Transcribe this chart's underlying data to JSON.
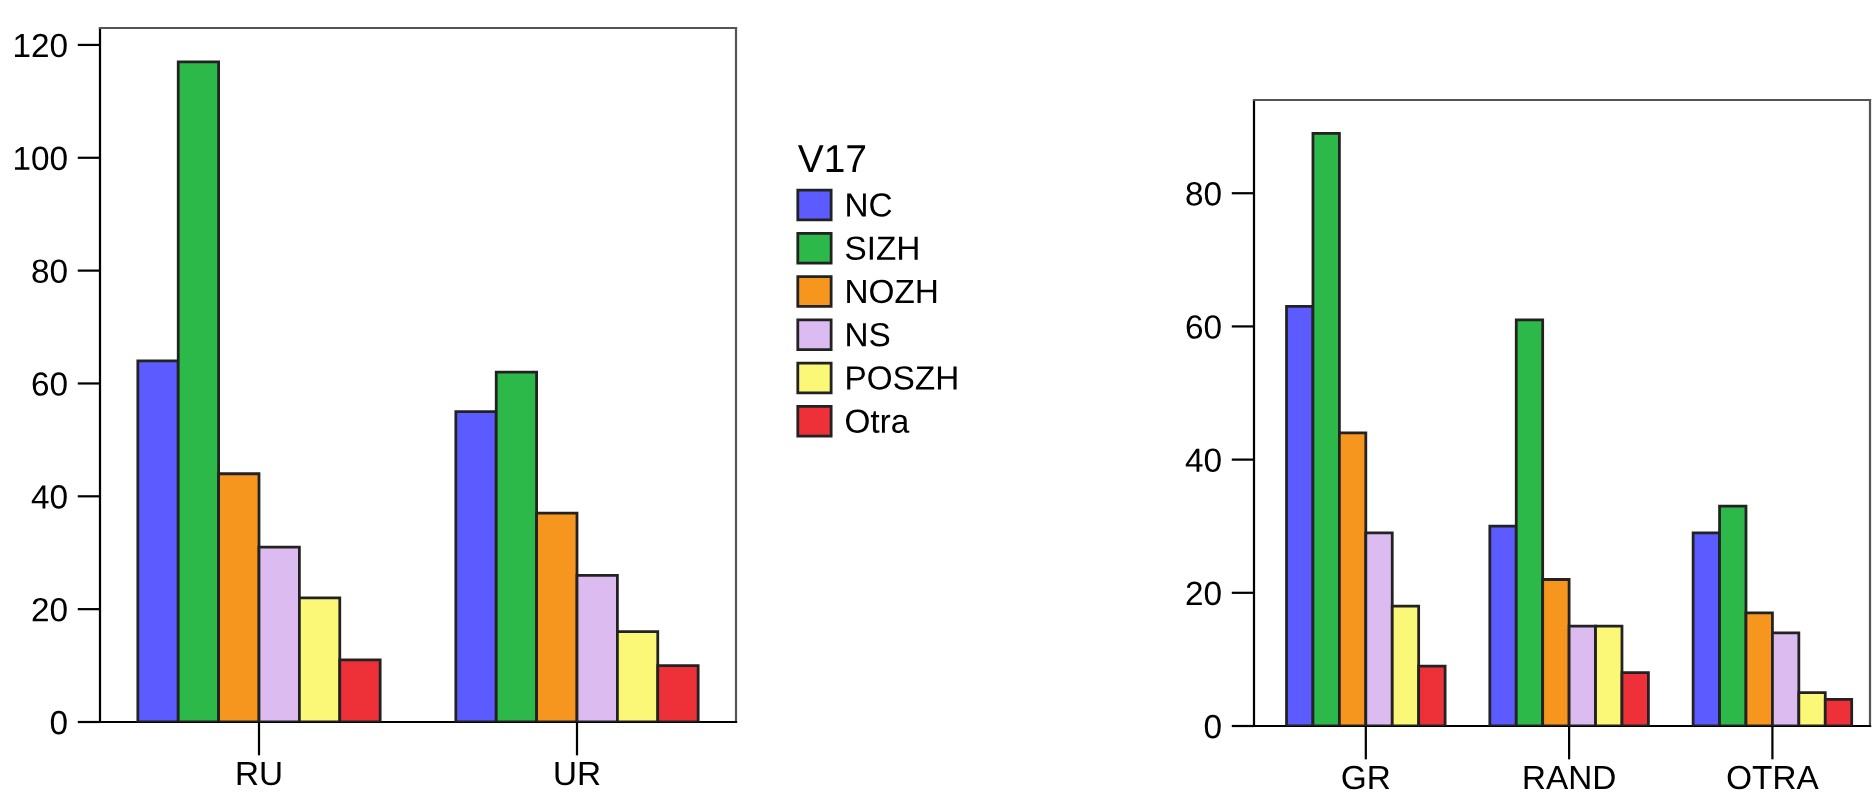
{
  "chart_data": [
    {
      "type": "bar",
      "categories": [
        "RU",
        "UR"
      ],
      "legend_title": "V17",
      "legend": "right",
      "grid": false,
      "ylim": [
        0,
        123
      ],
      "yticks": [
        0,
        20,
        40,
        60,
        80,
        100,
        120
      ],
      "series": [
        {
          "name": "NC",
          "color": "#5b5bff",
          "values": [
            64,
            55
          ]
        },
        {
          "name": "SIZH",
          "color": "#2db84a",
          "values": [
            117,
            62
          ]
        },
        {
          "name": "NOZH",
          "color": "#f7961f",
          "values": [
            44,
            37
          ]
        },
        {
          "name": "NS",
          "color": "#dcbcf0",
          "values": [
            31,
            26
          ]
        },
        {
          "name": "POSZH",
          "color": "#fbf777",
          "values": [
            22,
            16
          ]
        },
        {
          "name": "Otra",
          "color": "#ee3039",
          "values": [
            11,
            10
          ]
        }
      ]
    },
    {
      "type": "bar",
      "categories": [
        "GR",
        "RAND",
        "OTRA"
      ],
      "grid": false,
      "ylim": [
        0,
        94
      ],
      "yticks": [
        0,
        20,
        40,
        60,
        80
      ],
      "series": [
        {
          "color": "#5b5bff",
          "values": [
            63,
            30,
            29
          ]
        },
        {
          "color": "#2db84a",
          "values": [
            89,
            61,
            33
          ]
        },
        {
          "color": "#f7961f",
          "values": [
            44,
            22,
            17
          ]
        },
        {
          "color": "#dcbcf0",
          "values": [
            29,
            15,
            14
          ]
        },
        {
          "color": "#fbf777",
          "values": [
            18,
            15,
            5
          ]
        },
        {
          "color": "#ee3039",
          "values": [
            9,
            8,
            4
          ]
        }
      ]
    }
  ]
}
